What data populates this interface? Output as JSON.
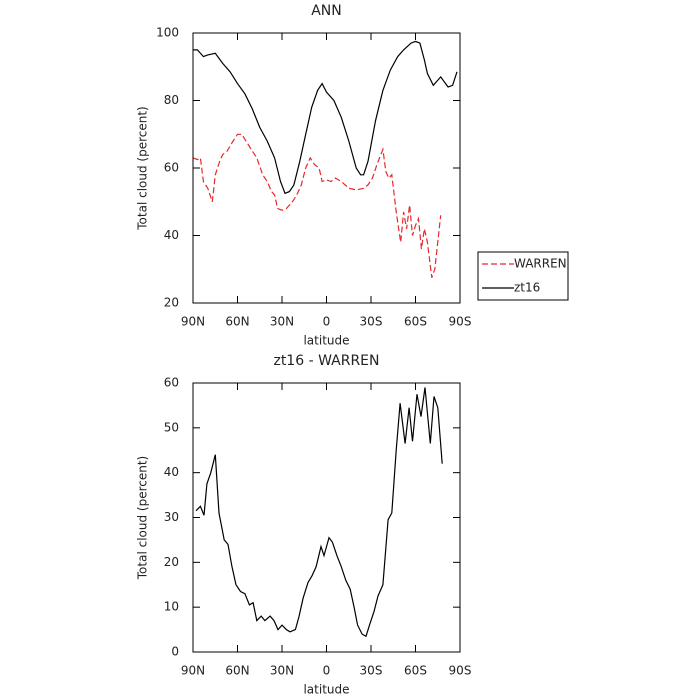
{
  "chart_data": [
    {
      "type": "line",
      "title": "ANN",
      "xlabel": "latitude",
      "ylabel": "Total cloud (percent)",
      "xlim": [
        90,
        -90
      ],
      "xticks": [
        {
          "value": 90,
          "label": "90N"
        },
        {
          "value": 60,
          "label": "60N"
        },
        {
          "value": 30,
          "label": "30N"
        },
        0,
        {
          "value": -30,
          "label": "30S"
        },
        {
          "value": -60,
          "label": "60S"
        },
        {
          "value": -90,
          "label": "90S"
        }
      ],
      "ylim": [
        20,
        100
      ],
      "yticks": [
        20,
        40,
        60,
        80,
        100
      ],
      "legend": "right",
      "series": [
        {
          "name": "WARREN",
          "color": "#e8282b",
          "linestyle": "dashed",
          "x": [
            90,
            87,
            85,
            83,
            80,
            77,
            75,
            72,
            70,
            67,
            63,
            60,
            57,
            55,
            50,
            47,
            43,
            40,
            37,
            35,
            33,
            30,
            27,
            23,
            20,
            17,
            14,
            11,
            8,
            5,
            3,
            0,
            -3,
            -6,
            -10,
            -15,
            -20,
            -25,
            -28,
            -31,
            -34,
            -38,
            -40,
            -42,
            -44,
            -47,
            -50,
            -52,
            -54,
            -56,
            -58,
            -60,
            -62,
            -64,
            -66,
            -68,
            -71,
            -73,
            -77
          ],
          "values": [
            63,
            62.5,
            63,
            56,
            54,
            50,
            58,
            62,
            64,
            65,
            68,
            70,
            70,
            68.5,
            65,
            63,
            58,
            56,
            53,
            52,
            48,
            47.5,
            48,
            50,
            52,
            55,
            60,
            63,
            61,
            60,
            56,
            56.5,
            56,
            57,
            56,
            54,
            53.5,
            54,
            55,
            57,
            61,
            65.5,
            59,
            57,
            58,
            47,
            38,
            47,
            42,
            49,
            40,
            43,
            45,
            36,
            42,
            38,
            27.5,
            30,
            46
          ]
        },
        {
          "name": "zt16",
          "color": "#000000",
          "linestyle": "solid",
          "x": [
            90,
            87,
            83,
            80,
            75,
            70,
            65,
            60,
            55,
            50,
            45,
            40,
            35,
            31,
            28,
            25,
            22,
            18,
            14,
            10,
            6,
            3,
            0,
            -5,
            -10,
            -15,
            -20,
            -23,
            -25,
            -28,
            -33,
            -38,
            -43,
            -48,
            -52,
            -57,
            -60,
            -63,
            -66,
            -68,
            -72,
            -77,
            -82,
            -85,
            -88
          ],
          "values": [
            95,
            95,
            93,
            93.5,
            94,
            91,
            88.5,
            85,
            82,
            77.5,
            72,
            68,
            63,
            56,
            52.5,
            53,
            55,
            62,
            70,
            78,
            83,
            85,
            82.5,
            80,
            75,
            68,
            60,
            58,
            58,
            62,
            74,
            83,
            89,
            93,
            95,
            97,
            97.5,
            97,
            92,
            88,
            84.5,
            87,
            84,
            84.5,
            88.5
          ]
        }
      ]
    },
    {
      "type": "line",
      "title": "zt16 - WARREN",
      "xlabel": "latitude",
      "ylabel": "Total cloud (percent)",
      "xlim": [
        90,
        -90
      ],
      "xticks": [
        {
          "value": 90,
          "label": "90N"
        },
        {
          "value": 60,
          "label": "60N"
        },
        {
          "value": 30,
          "label": "30N"
        },
        0,
        {
          "value": -30,
          "label": "30S"
        },
        {
          "value": -60,
          "label": "60S"
        },
        {
          "value": -90,
          "label": "90S"
        }
      ],
      "ylim": [
        0,
        60
      ],
      "yticks": [
        0,
        10,
        20,
        30,
        40,
        50,
        60
      ],
      "color": "#000000",
      "x": [
        88,
        85,
        82.6,
        80.6,
        78,
        75,
        72.5,
        69,
        66.4,
        63.7,
        61,
        58,
        55,
        52,
        49.5,
        47,
        44,
        41.5,
        38,
        35.4,
        32.7,
        30,
        27,
        24.6,
        21,
        18.5,
        15.8,
        12.5,
        9.8,
        7,
        3.7,
        1.7,
        -1.7,
        -4,
        -7,
        -10,
        -13,
        -16,
        -18.6,
        -21,
        -24,
        -26.6,
        -29,
        -32,
        -34.7,
        -38,
        -41.5,
        -44,
        -47,
        -49.6,
        -53,
        -55.7,
        -58,
        -61,
        -63.7,
        -66.4,
        -70,
        -72.5,
        -75,
        -78
      ],
      "values": [
        31.5,
        32.5,
        30.5,
        37.5,
        40,
        44,
        31,
        25,
        24,
        19,
        15,
        13.5,
        13,
        10.5,
        11,
        7,
        8,
        7,
        8,
        7,
        5,
        6,
        5,
        4.5,
        5,
        8,
        12,
        15.5,
        17,
        19,
        23.5,
        21.5,
        25.5,
        24.5,
        21.5,
        19,
        16,
        14,
        10,
        6,
        4,
        3.5,
        6,
        9,
        12.5,
        15,
        29.5,
        31,
        45,
        55.5,
        46.5,
        54.5,
        47,
        57.5,
        52.5,
        59,
        46.5,
        57,
        54.5,
        42
      ]
    }
  ]
}
